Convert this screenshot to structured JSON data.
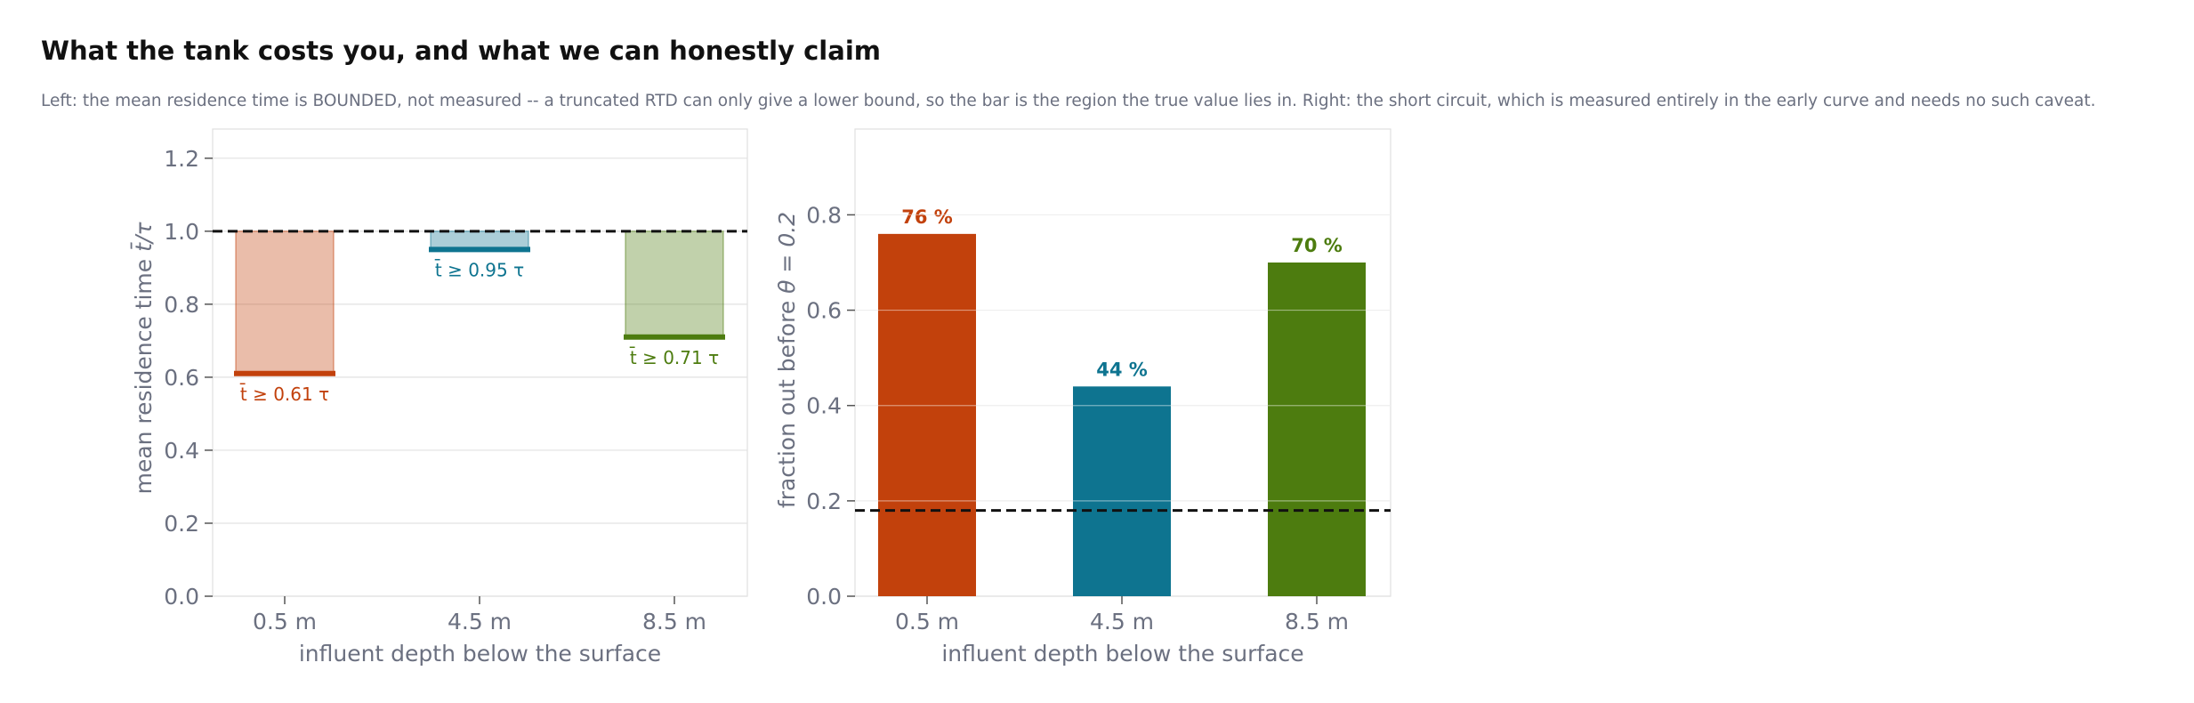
{
  "title": "What the tank costs you, and what we can honestly claim",
  "subtitle": "Left: the mean residence time is BOUNDED, not measured -- a truncated RTD can only give a lower bound, so the bar is the region the true value lies in. Right: the short circuit, which is measured entirely in the early curve and needs no such caveat.",
  "colors": {
    "rust": "#c2410c",
    "teal": "#0e7490",
    "green": "#4d7c0f",
    "axis_text": "#6b7080",
    "grid": "#e2e2e2"
  },
  "chart_data": [
    {
      "type": "bar",
      "panel": "left",
      "categories": [
        "0.5 m",
        "4.5 m",
        "8.5 m"
      ],
      "lower_bounds": [
        0.61,
        0.95,
        0.71
      ],
      "upper_bound": 1.0,
      "annotations": [
        "t̄ ≥ 0.61 τ",
        "t̄ ≥ 0.95 τ",
        "t̄ ≥ 0.71 τ"
      ],
      "reference_line": 1.0,
      "xlabel": "influent depth below the surface",
      "ylabel_main": "mean residence time",
      "ylabel_symbol": "t̄/τ",
      "ylim": [
        0,
        1.28
      ],
      "yticks": [
        "0.0",
        "0.2",
        "0.4",
        "0.6",
        "0.8",
        "1.0",
        "1.2"
      ],
      "grid": true
    },
    {
      "type": "bar",
      "panel": "right",
      "categories": [
        "0.5 m",
        "4.5 m",
        "8.5 m"
      ],
      "values": [
        0.76,
        0.44,
        0.7
      ],
      "data_labels": [
        "76 %",
        "44 %",
        "70 %"
      ],
      "reference_line": 0.18,
      "xlabel": "influent depth below the surface",
      "ylabel_main": "fraction out before",
      "ylabel_symbol": "θ = 0.2",
      "ylim": [
        0,
        0.98
      ],
      "yticks": [
        "0.0",
        "0.2",
        "0.4",
        "0.6",
        "0.8"
      ],
      "grid": true
    }
  ]
}
